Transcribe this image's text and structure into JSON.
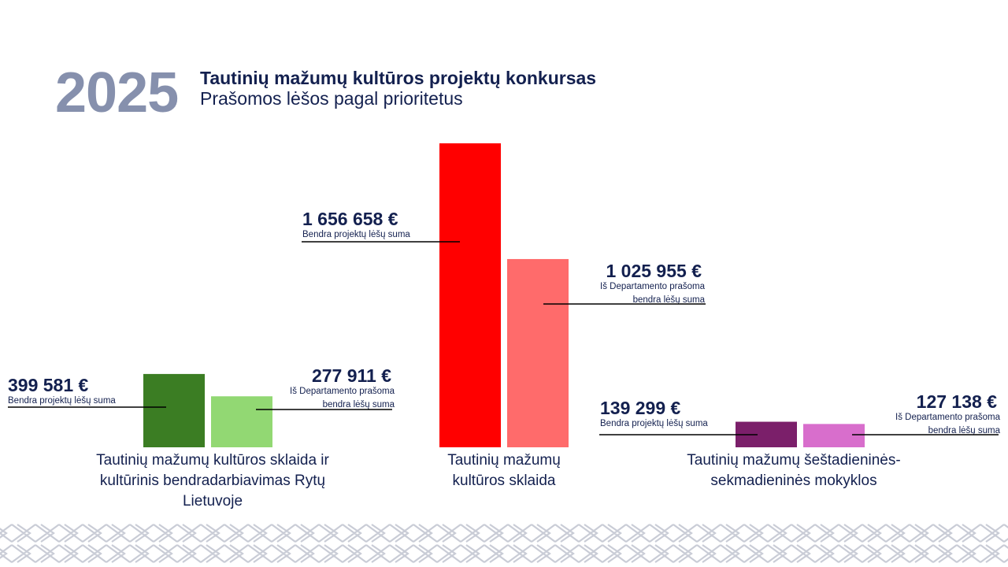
{
  "header": {
    "year": "2025",
    "title": "Tautinių mažumų kultūros projektų konkursas",
    "subtitle": "Prašomos lėšos pagal prioritetus"
  },
  "chart_data": {
    "type": "bar",
    "unit": "€",
    "series": [
      {
        "name": "Bendra projektų lėšų suma"
      },
      {
        "name": "Iš Departamento prašoma bendra lėšų suma"
      }
    ],
    "groups": [
      {
        "category": "Tautinių mažumų kultūros sklaida ir kultūrinis bendradarbiavimas Rytų Lietuvoje",
        "category_lines": [
          "Tautinių mažumų kultūros sklaida ir",
          "kultūrinis bendradarbiavimas Rytų",
          "Lietuvoje"
        ],
        "bars": [
          {
            "value": 399581,
            "label": "399 581 €",
            "note_lines": [
              "Bendra projektų lėšų suma"
            ],
            "color": "#3b7d23"
          },
          {
            "value": 277911,
            "label": "277 911 €",
            "note_lines": [
              "Iš Departamento prašoma",
              "bendra lėšų suma"
            ],
            "color": "#92d873"
          }
        ]
      },
      {
        "category": "Tautinių mažumų kultūros sklaida",
        "category_lines": [
          "Tautinių mažumų",
          "kultūros sklaida"
        ],
        "bars": [
          {
            "value": 1656658,
            "label": "1 656 658 €",
            "note_lines": [
              "Bendra projektų lėšų suma"
            ],
            "color": "#ff0000"
          },
          {
            "value": 1025955,
            "label": "1 025 955 €",
            "note_lines": [
              "Iš Departamento prašoma",
              "bendra lėšų suma"
            ],
            "color": "#ff6b6b"
          }
        ]
      },
      {
        "category": "Tautinių mažumų šeštadieninės-sekmadieninės mokyklos",
        "category_lines": [
          "Tautinių mažumų šeštadieninės-",
          "sekmadieninės mokyklos"
        ],
        "bars": [
          {
            "value": 139299,
            "label": "139 299 €",
            "note_lines": [
              "Bendra projektų lėšų suma"
            ],
            "color": "#7b1f6a"
          },
          {
            "value": 127138,
            "label": "127 138 €",
            "note_lines": [
              "Iš Departamento prašoma",
              "bendra lėšų suma"
            ],
            "color": "#d86ecc"
          }
        ]
      }
    ]
  }
}
